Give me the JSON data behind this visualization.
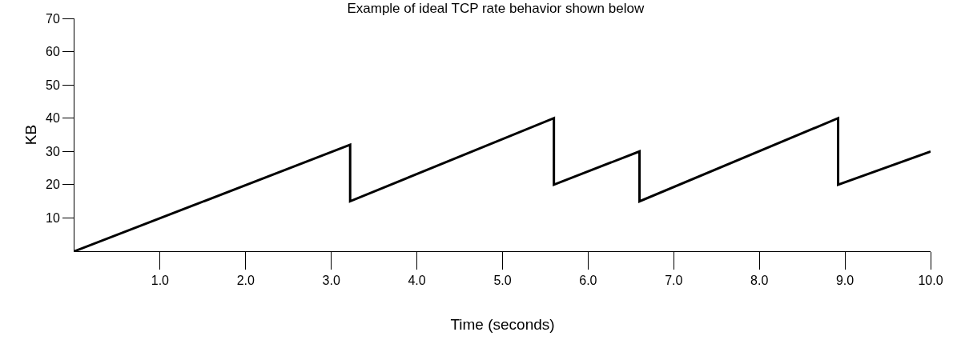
{
  "chart_data": {
    "type": "line",
    "title": "Example of ideal TCP rate behavior shown below",
    "xlabel": "Time (seconds)",
    "ylabel": "KB",
    "x": [
      0,
      3.22,
      3.22,
      5.6,
      5.6,
      6.6,
      6.6,
      8.92,
      8.92,
      10
    ],
    "series": [
      {
        "color": "#000000",
        "values": [
          0,
          32,
          15,
          40,
          20,
          30,
          15,
          40,
          20,
          30
        ]
      }
    ],
    "xlim": [
      0,
      10
    ],
    "ylim": [
      0,
      70
    ],
    "xticks": [
      {
        "value": 1,
        "label": "1.0"
      },
      {
        "value": 2,
        "label": "2.0"
      },
      {
        "value": 3,
        "label": "3.0"
      },
      {
        "value": 4,
        "label": "4.0"
      },
      {
        "value": 5,
        "label": "5.0"
      },
      {
        "value": 6,
        "label": "6.0"
      },
      {
        "value": 7,
        "label": "7.0"
      },
      {
        "value": 8,
        "label": "8.0"
      },
      {
        "value": 9,
        "label": "9.0"
      },
      {
        "value": 10,
        "label": "10.0"
      }
    ],
    "yticks": [
      10,
      20,
      30,
      40,
      50,
      60,
      70
    ],
    "grid": false,
    "legend": false,
    "marker": "none",
    "line_style": "solid"
  }
}
